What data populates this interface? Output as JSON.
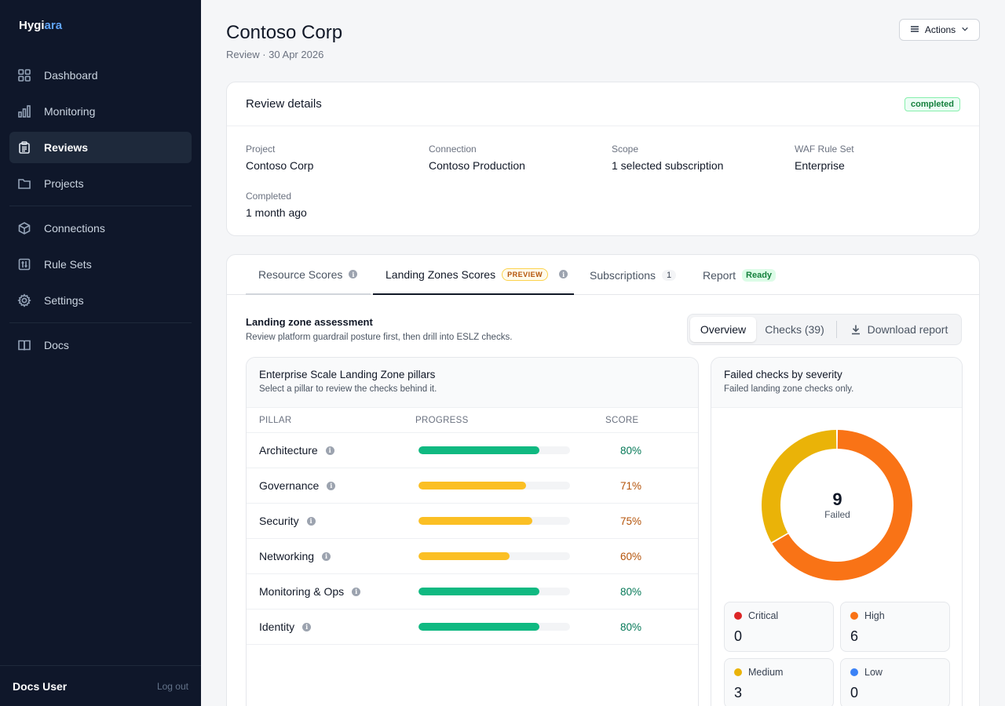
{
  "brand": {
    "main": "Hygi",
    "accent": "ara",
    "accent_color": "#60a5fa"
  },
  "sidebar": {
    "items": [
      {
        "label": "Dashboard",
        "icon": "grid-icon"
      },
      {
        "label": "Monitoring",
        "icon": "bar-chart-icon"
      },
      {
        "label": "Reviews",
        "icon": "clipboard-icon",
        "active": true
      },
      {
        "label": "Projects",
        "icon": "folder-icon"
      },
      {
        "label": "Connections",
        "icon": "cube-icon"
      },
      {
        "label": "Rule Sets",
        "icon": "sliders-icon"
      },
      {
        "label": "Settings",
        "icon": "gear-icon"
      },
      {
        "label": "Docs",
        "icon": "book-icon"
      }
    ],
    "user": "Docs User",
    "logout": "Log out"
  },
  "header": {
    "title": "Contoso Corp",
    "subtitle": "Review · 30 Apr 2026",
    "actions_label": "Actions"
  },
  "details": {
    "title": "Review details",
    "status": "completed",
    "fields": [
      {
        "label": "Project",
        "value": "Contoso Corp"
      },
      {
        "label": "Connection",
        "value": "Contoso Production"
      },
      {
        "label": "Scope",
        "value": "1 selected subscription"
      },
      {
        "label": "WAF Rule Set",
        "value": "Enterprise"
      },
      {
        "label": "Completed",
        "value": "1 month ago"
      }
    ]
  },
  "tabs": [
    {
      "label": "Resource Scores"
    },
    {
      "label": "Landing Zones Scores",
      "badge": "PREVIEW",
      "active": true
    },
    {
      "label": "Subscriptions",
      "count": "1"
    },
    {
      "label": "Report",
      "badge": "Ready"
    }
  ],
  "assessment": {
    "title": "Landing zone assessment",
    "subtitle": "Review platform guardrail posture first, then drill into ESLZ checks.",
    "views": {
      "overview": "Overview",
      "checks": "Checks (39)",
      "download": "Download report"
    }
  },
  "pillars": {
    "title": "Enterprise Scale Landing Zone pillars",
    "subtitle": "Select a pillar to review the checks behind it.",
    "columns": {
      "pillar": "PILLAR",
      "progress": "PROGRESS",
      "score": "SCORE"
    },
    "rows": [
      {
        "name": "Architecture",
        "score": "80%",
        "progress": 0.8,
        "color": "#10b981",
        "score_color": "#047857"
      },
      {
        "name": "Governance",
        "score": "71%",
        "progress": 0.71,
        "color": "#fbbf24",
        "score_color": "#b45309"
      },
      {
        "name": "Security",
        "score": "75%",
        "progress": 0.75,
        "color": "#fbbf24",
        "score_color": "#b45309"
      },
      {
        "name": "Networking",
        "score": "60%",
        "progress": 0.6,
        "color": "#fbbf24",
        "score_color": "#b45309"
      },
      {
        "name": "Monitoring & Ops",
        "score": "80%",
        "progress": 0.8,
        "color": "#10b981",
        "score_color": "#047857"
      },
      {
        "name": "Identity",
        "score": "80%",
        "progress": 0.8,
        "color": "#10b981",
        "score_color": "#047857"
      }
    ]
  },
  "severity": {
    "title": "Failed checks by severity",
    "subtitle": "Failed landing zone checks only.",
    "total": "9",
    "total_label": "Failed",
    "levels": [
      {
        "label": "Critical",
        "value": "0",
        "color": "#dc2626"
      },
      {
        "label": "High",
        "value": "6",
        "color": "#f97316"
      },
      {
        "label": "Medium",
        "value": "3",
        "color": "#eab308"
      },
      {
        "label": "Low",
        "value": "0",
        "color": "#3b82f6"
      }
    ]
  }
}
